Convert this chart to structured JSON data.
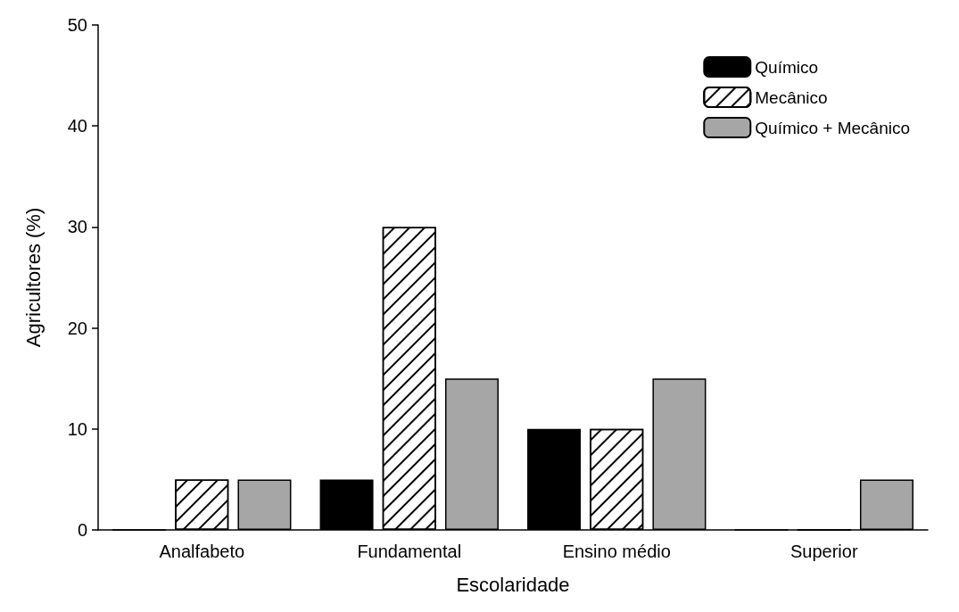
{
  "chart_data": {
    "type": "bar",
    "xlabel": "Escolaridade",
    "ylabel": "Agricultores (%)",
    "categories": [
      "Analfabeto",
      "Fundamental",
      "Ensino médio",
      "Superior"
    ],
    "series": [
      {
        "name": "Químico",
        "color": "#000000",
        "values": [
          0,
          5,
          10,
          0
        ]
      },
      {
        "name": "Mecânico",
        "color": "#ffffff",
        "values": [
          5,
          30,
          10,
          0
        ]
      },
      {
        "name": "Químico + Mecânico",
        "color": "#a6a6a6",
        "values": [
          5,
          15,
          15,
          5
        ]
      }
    ],
    "ylim": [
      0,
      50
    ],
    "yticks": [
      0,
      10,
      20,
      30,
      40,
      50
    ],
    "grid": false,
    "legend": "top right"
  }
}
